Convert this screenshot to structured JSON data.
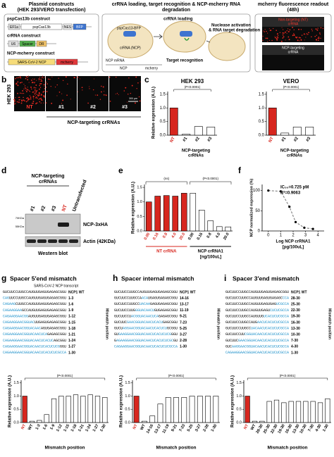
{
  "panel_labels": [
    "a",
    "b",
    "c",
    "d",
    "e",
    "f",
    "g",
    "h",
    "i"
  ],
  "a": {
    "titles": [
      "Plasmid constructs",
      "(HEK 293/VERO transfection)",
      "crRNA loading, target recognition & NCP-mcherry RNA",
      "degradation",
      "mcherry fluorescence readout",
      "(48h)"
    ],
    "constructs": [
      "pspCas13b construct",
      "crRNA construct",
      "NCP-mcherry construct"
    ],
    "elements": [
      "EF1a",
      "pspCas13b",
      "NES",
      "BFP",
      "U6",
      "Spacer",
      "DR",
      "SARS-CoV-2 NCP",
      "mcherry"
    ],
    "process": [
      "crRNA loading",
      "pspCas13-BFP",
      "crRNA (NCP)",
      "Nuclease activation",
      "& RNA target degradation",
      "Target recognition",
      "NCP mRNA",
      "NCP",
      "mcherry"
    ],
    "readout": [
      "Non-targeting (NT)",
      "crRNA",
      "NCP-targeting",
      "crRNA"
    ]
  },
  "b": {
    "cell_line": "HEK 293",
    "wells": [
      "NT",
      "#1",
      "#2",
      "#3"
    ],
    "group": "NCP-targeting crRNAs",
    "scale": "300 µm"
  },
  "c": {
    "ylabel": "Relative expression (A.U.)",
    "group": [
      "NCP-targeting",
      "crRNAs"
    ],
    "charts": [
      {
        "type": "bar",
        "title": "HEK 293",
        "categories": [
          "NT",
          "#1",
          "#2",
          "#3"
        ],
        "values": [
          1.0,
          0.04,
          0.32,
          0.3
        ],
        "colors": [
          "#d7261e",
          "#ffffff",
          "#ffffff",
          "#ffffff"
        ],
        "ylim": [
          0,
          1.6
        ],
        "yticks": [
          {
            "value": 0,
            "label": "0.0"
          },
          0.5,
          {
            "value": 1,
            "label": "1.0"
          },
          1.5
        ],
        "annotation": "(P<0.0001)"
      },
      {
        "type": "bar",
        "title": "VERO",
        "categories": [
          "NT",
          "#1",
          "#2",
          "#3"
        ],
        "values": [
          1.0,
          0.08,
          0.3,
          0.3
        ],
        "colors": [
          "#d7261e",
          "#ffffff",
          "#ffffff",
          "#ffffff"
        ],
        "ylim": [
          0,
          1.6
        ],
        "yticks": [
          {
            "value": 0,
            "label": "0.0"
          },
          0.5,
          {
            "value": 1,
            "label": "1.0"
          },
          1.5
        ],
        "annotation": "(P<0.0001)"
      }
    ]
  },
  "d": {
    "group": [
      "NCP-targeting",
      "crRNAs"
    ],
    "lanes": [
      "#1",
      "#2",
      "#3",
      "NT",
      "Untransfected"
    ],
    "markers": [
      "70KDa",
      "55KDa"
    ],
    "bands": [
      "NCP-3xHA",
      "Actin (42KDa)"
    ],
    "caption": "Western blot"
  },
  "e": {
    "chart": {
      "type": "bar",
      "ylabel": "Relative expression (A.U.)",
      "categories": [
        "0.00",
        "0.16",
        "0.8",
        "4.0",
        "20.0",
        "0.00",
        "0.16",
        "0.8",
        "4.0",
        "20.0"
      ],
      "values": [
        1.0,
        1.2,
        1.22,
        1.2,
        1.3,
        1.3,
        0.72,
        0.35,
        0.15,
        0.14
      ],
      "colors": [
        "#d7261e",
        "#d7261e",
        "#d7261e",
        "#d7261e",
        "#d7261e",
        "#ffffff",
        "#ffffff",
        "#ffffff",
        "#ffffff",
        "#ffffff"
      ],
      "ylim": [
        0,
        1.6
      ],
      "yticks": [
        {
          "value": 0,
          "label": "0.0"
        },
        0.5,
        {
          "value": 1,
          "label": "1.0"
        },
        1.5
      ],
      "groups": [
        {
          "label": "NT crRNA",
          "color": "#d7261e",
          "annotation": "(ns)"
        },
        {
          "label": "NCP crRNA1",
          "color": "#000000",
          "annotation": "(P<0.0001)"
        }
      ],
      "unit": "[ng/100uL]"
    }
  },
  "f": {
    "chart": {
      "type": "line",
      "x": [
        0,
        1,
        1.7,
        2.2,
        2.9,
        3.6
      ],
      "values": [
        100,
        98,
        60,
        22,
        8,
        5
      ],
      "xlim": [
        -0.5,
        4.5
      ],
      "ylim": [
        0,
        115
      ],
      "xticks": [
        0,
        1,
        2,
        3,
        4
      ],
      "yticks": [
        0,
        50,
        100
      ],
      "xlabel": [
        "Log NCP crRNA1",
        "[pg/100uL]"
      ],
      "ylabel": "NCP normalized expression (%)",
      "annotations": [
        "IC₅₀=0.725 pM",
        "R²=0.9063"
      ],
      "color": "#888888"
    }
  },
  "g": {
    "title": "Spacer 5′end mismatch",
    "transcript": "SARS-CoV-2 NCP transcript",
    "side_label": "Mismatch position",
    "sequences": [
      {
        "parts": [
          {
            "t": "GUCUUCCUUGCCAUGUUGAGUGAGAGCGGU"
          }
        ],
        "label": "NCP1 WT"
      },
      {
        "parts": [
          {
            "t": "CAG",
            "color": "#1a8fc9"
          },
          {
            "t": "UUCCUUGCCAUGUUGAGUGAGAGCGGU"
          }
        ],
        "label": "1-3"
      },
      {
        "parts": [
          {
            "t": "CAGAAG",
            "color": "#1a8fc9"
          },
          {
            "t": "CUUGCCAUGUUGAGUGAGAGCGGU"
          }
        ],
        "label": "1-6"
      },
      {
        "parts": [
          {
            "t": "CAGAAGGAA",
            "color": "#1a8fc9"
          },
          {
            "t": "GCCAUGUUGAGUGAGAGCGGU"
          }
        ],
        "label": "1-9"
      },
      {
        "parts": [
          {
            "t": "CAGAAGGAACGG",
            "color": "#1a8fc9"
          },
          {
            "t": "AUGUUGAGUGAGAGCGGU"
          }
        ],
        "label": "1-12"
      },
      {
        "parts": [
          {
            "t": "CAGAAGGAACGGUAC",
            "color": "#1a8fc9"
          },
          {
            "t": "UUGAGUGAGAGCGGU"
          }
        ],
        "label": "1-15"
      },
      {
        "parts": [
          {
            "t": "CAGAAGGAACGGUACAAC",
            "color": "#1a8fc9"
          },
          {
            "t": "AGUGAGAGCGGU"
          }
        ],
        "label": "1-18"
      },
      {
        "parts": [
          {
            "t": "CAGAAGGAACGGUACAACUCA",
            "color": "#1a8fc9"
          },
          {
            "t": "GAGAGCGGU"
          }
        ],
        "label": "1-21"
      },
      {
        "parts": [
          {
            "t": "CAGAAGGAACGGUACAACUCACUC",
            "color": "#1a8fc9"
          },
          {
            "t": "AGCGGU"
          }
        ],
        "label": "1-24"
      },
      {
        "parts": [
          {
            "t": "CAGAAGGAACGGUACAACUCACUCUCG",
            "color": "#1a8fc9"
          },
          {
            "t": "GGU"
          }
        ],
        "label": "1-27"
      },
      {
        "parts": [
          {
            "t": "CAGAAGGAACGGUACAACUCACUCUCGCCA",
            "color": "#1a8fc9"
          }
        ],
        "label": "1-30"
      }
    ],
    "chart": {
      "type": "bar",
      "ylabel": "Relative expression (A.U.)",
      "xlabel": "Mismatch position",
      "categories": [
        "NT",
        "WT",
        "1-3",
        "1-6",
        "1-9",
        "1-12",
        "1-15",
        "1-18",
        "1-21",
        "1-24",
        "1-27",
        "1-30"
      ],
      "values": [
        1.0,
        0.05,
        0.08,
        0.3,
        0.9,
        1.0,
        1.0,
        1.05,
        1.0,
        1.05,
        1.0,
        0.95
      ],
      "colors": [
        "#d7261e",
        "#ffffff",
        "#ffffff",
        "#ffffff",
        "#ffffff",
        "#ffffff",
        "#ffffff",
        "#ffffff",
        "#ffffff",
        "#ffffff",
        "#ffffff",
        "#ffffff"
      ],
      "ylim": [
        0,
        1.6
      ],
      "yticks": [
        {
          "value": 0,
          "label": "0.0"
        },
        0.5,
        {
          "value": 1,
          "label": "1.0"
        },
        1.5
      ],
      "annotation": "(P<0.0001)"
    }
  },
  "h": {
    "title": "Spacer internal mismatch",
    "side_label": "Mismatch position",
    "sequences": [
      {
        "parts": [
          {
            "t": "GUCUUCCUUGCCAUGUUGAGUGAGAGCGGU"
          }
        ],
        "label": "NCP1 WT"
      },
      {
        "parts": [
          {
            "t": "GUCUUCCUUGCCA"
          },
          {
            "t": "ACA",
            "color": "#1a8fc9"
          },
          {
            "t": "UGAGUGAGAGCGGU"
          }
        ],
        "label": "14-16"
      },
      {
        "parts": [
          {
            "t": "GUCUUCCUUGCC"
          },
          {
            "t": "UACAA",
            "color": "#1a8fc9"
          },
          {
            "t": "GAGUGAGAGCGGU"
          }
        ],
        "label": "13-17"
      },
      {
        "parts": [
          {
            "t": "GUCUUCCUUG"
          },
          {
            "t": "GGUACAACU",
            "color": "#1a8fc9"
          },
          {
            "t": "GUGAGAGCGGU"
          }
        ],
        "label": "11-19"
      },
      {
        "parts": [
          {
            "t": "GUCUUCCU"
          },
          {
            "t": "ACGGUACAACUCA",
            "color": "#1a8fc9"
          },
          {
            "t": "GAGAGCGGU"
          }
        ],
        "label": "9-21"
      },
      {
        "parts": [
          {
            "t": "GUCUUC"
          },
          {
            "t": "GAACGGUACAACUCACU",
            "color": "#1a8fc9"
          },
          {
            "t": "GAGCGGU"
          }
        ],
        "label": "7-23"
      },
      {
        "parts": [
          {
            "t": "GUCU"
          },
          {
            "t": "AGGAACGGUACAACUCACUCU",
            "color": "#1a8fc9"
          },
          {
            "t": "GCGGU"
          }
        ],
        "label": "5-25"
      },
      {
        "parts": [
          {
            "t": "GU"
          },
          {
            "t": "GAAGGAACGGUACAACUCACUCUCG",
            "color": "#1a8fc9"
          },
          {
            "t": "GGU"
          }
        ],
        "label": "3-27"
      },
      {
        "parts": [
          {
            "t": "G"
          },
          {
            "t": "AGAAGGAACGGUACAACUCACUCUCGC",
            "color": "#1a8fc9"
          },
          {
            "t": "GU"
          }
        ],
        "label": "2-28"
      },
      {
        "parts": [
          {
            "t": "CAGAAGGAACGGUACAACUCACUCUCGCCA",
            "color": "#1a8fc9"
          }
        ],
        "label": "1-30"
      }
    ],
    "chart": {
      "type": "bar",
      "ylabel": "Relative expression (A.U.)",
      "xlabel": "Mismatch position",
      "categories": [
        "NT",
        "WT",
        "14-16",
        "13-17",
        "11-19",
        "9-21",
        "7-23",
        "5-25",
        "3-27",
        "2-28",
        "1-30"
      ],
      "values": [
        1.0,
        0.05,
        0.25,
        0.7,
        0.95,
        0.95,
        0.95,
        1.0,
        1.0,
        1.0,
        1.0
      ],
      "colors": [
        "#d7261e",
        "#ffffff",
        "#ffffff",
        "#ffffff",
        "#ffffff",
        "#ffffff",
        "#ffffff",
        "#ffffff",
        "#ffffff",
        "#ffffff",
        "#ffffff"
      ],
      "ylim": [
        0,
        1.6
      ],
      "yticks": [
        {
          "value": 0,
          "label": "0.0"
        },
        0.5,
        {
          "value": 1,
          "label": "1.0"
        },
        1.5
      ],
      "annotation": "(P<0.0001)"
    }
  },
  "i": {
    "title": "Spacer 3′end mismatch",
    "side_label": "Mismatch position",
    "sequences": [
      {
        "parts": [
          {
            "t": "GUCUUCCUUGCCAUGUUGAGUGAGAGCGGU"
          }
        ],
        "label": "NCP1 WT"
      },
      {
        "parts": [
          {
            "t": "GUCUUCCUUGCCAUGUUGAGUGAGAGC"
          },
          {
            "t": "CCA",
            "color": "#1a8fc9"
          }
        ],
        "label": "28-30"
      },
      {
        "parts": [
          {
            "t": "GUCUUCCUUGCCAUGUUGAGUGAG"
          },
          {
            "t": "UCGCCA",
            "color": "#1a8fc9"
          }
        ],
        "label": "25-30"
      },
      {
        "parts": [
          {
            "t": "GUCUUCCUUGCCAUGUUGAGU"
          },
          {
            "t": "CUCUCGCCA",
            "color": "#1a8fc9"
          }
        ],
        "label": "22-30"
      },
      {
        "parts": [
          {
            "t": "GUCUUCCUUGCCAUGUUG"
          },
          {
            "t": "UCACUCUCGCCA",
            "color": "#1a8fc9"
          }
        ],
        "label": "19-30"
      },
      {
        "parts": [
          {
            "t": "GUCUUCCUUGCCAUG"
          },
          {
            "t": "AACUCACUCUCGCCA",
            "color": "#1a8fc9"
          }
        ],
        "label": "16-30"
      },
      {
        "parts": [
          {
            "t": "GUCUUCCUUGCC"
          },
          {
            "t": "UACAACUCACUCUCGCCA",
            "color": "#1a8fc9"
          }
        ],
        "label": "13-30"
      },
      {
        "parts": [
          {
            "t": "GUCUUCCUU"
          },
          {
            "t": "CGGUACAACUCACUCUCGCCA",
            "color": "#1a8fc9"
          }
        ],
        "label": "10-30"
      },
      {
        "parts": [
          {
            "t": "GUCUUC"
          },
          {
            "t": "GAACGGUACAACUCACUCUCGCCA",
            "color": "#1a8fc9"
          }
        ],
        "label": "7-30"
      },
      {
        "parts": [
          {
            "t": "GUC"
          },
          {
            "t": "AAGGAACGGUACAACUCACUCUCGCCA",
            "color": "#1a8fc9"
          }
        ],
        "label": "4-30"
      },
      {
        "parts": [
          {
            "t": "CAGAAGGAACGGUACAACUCACUCUCGCCA",
            "color": "#1a8fc9"
          }
        ],
        "label": "1-30"
      }
    ],
    "chart": {
      "type": "bar",
      "ylabel": "Relative expression (A.U.)",
      "xlabel": "Mismatch position",
      "categories": [
        "NT",
        "WT",
        "28-30",
        "25-30",
        "22-30",
        "19-30",
        "16-30",
        "13-30",
        "10-30",
        "7-30",
        "4-30",
        "1-30"
      ],
      "values": [
        1.0,
        0.05,
        0.05,
        0.8,
        0.85,
        0.75,
        0.8,
        0.8,
        0.8,
        0.8,
        0.75,
        0.9
      ],
      "colors": [
        "#d7261e",
        "#ffffff",
        "#ffffff",
        "#ffffff",
        "#ffffff",
        "#ffffff",
        "#ffffff",
        "#ffffff",
        "#ffffff",
        "#ffffff",
        "#ffffff",
        "#ffffff"
      ],
      "ylim": [
        0,
        1.6
      ],
      "yticks": [
        {
          "value": 0,
          "label": "0.0"
        },
        0.5,
        {
          "value": 1,
          "label": "1.0"
        },
        1.5
      ],
      "annotation": "(P<0.0001)"
    }
  }
}
